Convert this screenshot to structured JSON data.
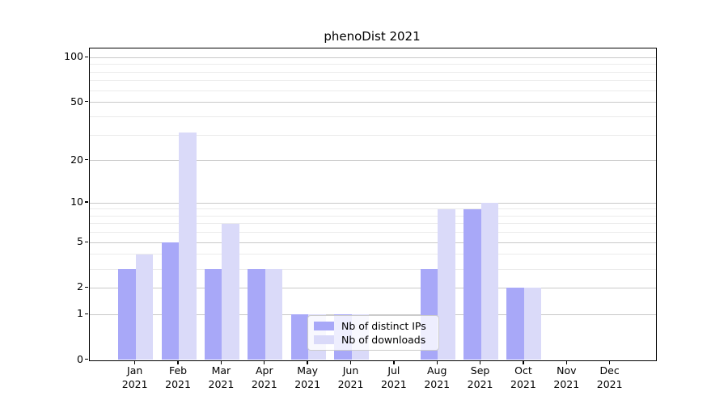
{
  "title": "phenoDist 2021",
  "chart_data": {
    "type": "bar",
    "title": "phenoDist 2021",
    "categories": [
      "Jan 2021",
      "Feb 2021",
      "Mar 2021",
      "Apr 2021",
      "May 2021",
      "Jun 2021",
      "Jul 2021",
      "Aug 2021",
      "Sep 2021",
      "Oct 2021",
      "Nov 2021",
      "Dec 2021"
    ],
    "series": [
      {
        "name": "Nb of distinct IPs",
        "color": "#a8a8f8",
        "values": [
          3,
          5,
          3,
          3,
          1,
          1,
          0,
          3,
          9,
          2,
          0,
          0
        ]
      },
      {
        "name": "Nb of downloads",
        "color": "#dadaf9",
        "values": [
          4,
          31,
          7,
          3,
          1,
          1,
          0,
          9,
          10,
          2,
          0,
          0
        ]
      }
    ],
    "xlabel": "",
    "ylabel": "",
    "y_scale": "log1p",
    "y_tick_labels": [
      0,
      1,
      2,
      5,
      10,
      20,
      50,
      100
    ],
    "y_minor_gridlines": [
      3,
      4,
      6,
      7,
      8,
      9,
      30,
      40,
      60,
      70,
      80,
      90
    ],
    "ylim": [
      0,
      115
    ],
    "grid": "on",
    "legend_position": "inside lower-center"
  },
  "colors": {
    "axis": "#000000",
    "grid_major": "#c9c9c9",
    "grid_minor": "#ebebeb",
    "background": "#ffffff",
    "legend_border": "#cccccc"
  }
}
